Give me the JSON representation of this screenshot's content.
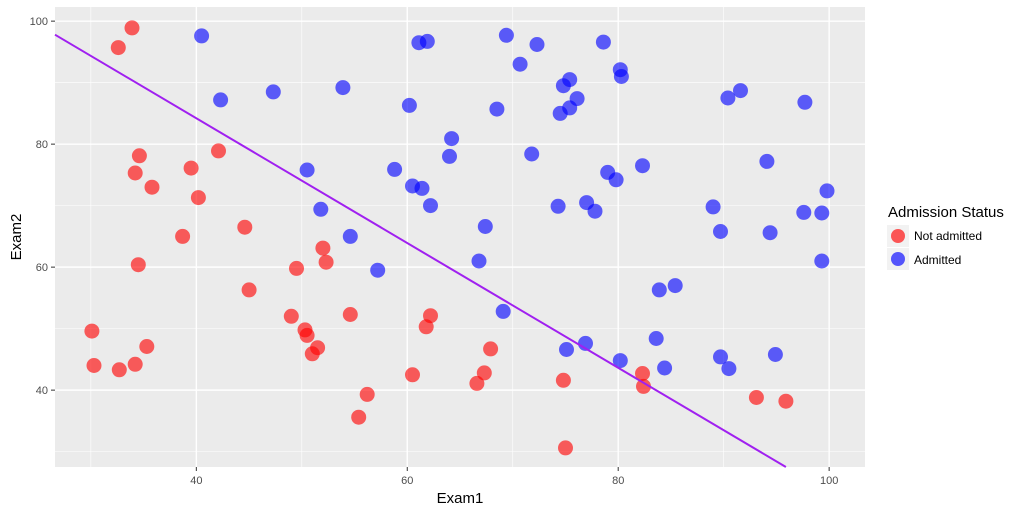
{
  "chart_data": {
    "type": "scatter",
    "title": "",
    "xlabel": "Exam1",
    "ylabel": "Exam2",
    "xlim": [
      26.6,
      103.4
    ],
    "ylim": [
      27.5,
      102.3
    ],
    "x_ticks": [
      40,
      60,
      80,
      100
    ],
    "y_ticks": [
      40,
      60,
      80,
      100
    ],
    "x_tick_labels": [
      "40",
      "60",
      "80",
      "100"
    ],
    "y_tick_labels": [
      "40",
      "60",
      "80",
      "100"
    ],
    "grid": true,
    "legend": {
      "title": "Admission Status",
      "position": "right",
      "entries": [
        "Not admitted",
        "Admitted"
      ]
    },
    "series": [
      {
        "name": "Not admitted",
        "color": "#ff0000",
        "points": [
          [
            33.9,
            98.9
          ],
          [
            32.6,
            95.7
          ],
          [
            34.6,
            78.1
          ],
          [
            34.2,
            75.3
          ],
          [
            35.8,
            73.0
          ],
          [
            39.5,
            76.1
          ],
          [
            42.1,
            78.9
          ],
          [
            40.2,
            71.3
          ],
          [
            38.7,
            65.0
          ],
          [
            44.6,
            66.5
          ],
          [
            34.5,
            60.4
          ],
          [
            45.0,
            56.3
          ],
          [
            49.5,
            59.8
          ],
          [
            52.0,
            63.1
          ],
          [
            52.3,
            60.8
          ],
          [
            30.1,
            49.6
          ],
          [
            30.3,
            44.0
          ],
          [
            32.7,
            43.3
          ],
          [
            34.2,
            44.2
          ],
          [
            35.3,
            47.1
          ],
          [
            49.0,
            52.0
          ],
          [
            50.3,
            49.8
          ],
          [
            50.5,
            48.9
          ],
          [
            51.0,
            45.9
          ],
          [
            51.5,
            46.9
          ],
          [
            54.6,
            52.3
          ],
          [
            56.2,
            39.3
          ],
          [
            55.4,
            35.6
          ],
          [
            60.5,
            42.5
          ],
          [
            61.8,
            50.3
          ],
          [
            62.2,
            52.1
          ],
          [
            66.6,
            41.1
          ],
          [
            67.3,
            42.8
          ],
          [
            67.9,
            46.7
          ],
          [
            74.8,
            41.6
          ],
          [
            75.0,
            30.6
          ],
          [
            82.3,
            42.7
          ],
          [
            82.4,
            40.6
          ],
          [
            93.1,
            38.8
          ],
          [
            95.9,
            38.2
          ]
        ]
      },
      {
        "name": "Admitted",
        "color": "#0000ff",
        "points": [
          [
            40.5,
            97.6
          ],
          [
            42.3,
            87.2
          ],
          [
            47.3,
            88.5
          ],
          [
            53.9,
            89.2
          ],
          [
            61.1,
            96.5
          ],
          [
            61.9,
            96.7
          ],
          [
            60.2,
            86.3
          ],
          [
            64.2,
            80.9
          ],
          [
            64.0,
            78.0
          ],
          [
            69.4,
            97.7
          ],
          [
            72.3,
            96.2
          ],
          [
            70.7,
            93.0
          ],
          [
            68.5,
            85.7
          ],
          [
            71.8,
            78.4
          ],
          [
            74.5,
            85.0
          ],
          [
            74.8,
            89.5
          ],
          [
            75.4,
            90.5
          ],
          [
            75.4,
            85.9
          ],
          [
            76.1,
            87.4
          ],
          [
            78.6,
            96.6
          ],
          [
            80.2,
            92.1
          ],
          [
            80.3,
            91.0
          ],
          [
            79.0,
            75.4
          ],
          [
            79.8,
            74.2
          ],
          [
            77.0,
            70.5
          ],
          [
            77.8,
            69.1
          ],
          [
            74.3,
            69.9
          ],
          [
            82.3,
            76.5
          ],
          [
            50.5,
            75.8
          ],
          [
            51.8,
            69.4
          ],
          [
            58.8,
            75.9
          ],
          [
            60.5,
            73.2
          ],
          [
            61.4,
            72.8
          ],
          [
            62.2,
            70.0
          ],
          [
            54.6,
            65.0
          ],
          [
            57.2,
            59.5
          ],
          [
            67.4,
            66.6
          ],
          [
            66.8,
            61.0
          ],
          [
            69.1,
            52.8
          ],
          [
            75.1,
            46.6
          ],
          [
            76.9,
            47.6
          ],
          [
            80.2,
            44.8
          ],
          [
            83.6,
            48.4
          ],
          [
            83.9,
            56.3
          ],
          [
            85.4,
            57.0
          ],
          [
            84.4,
            43.6
          ],
          [
            89.7,
            45.4
          ],
          [
            90.5,
            43.5
          ],
          [
            94.9,
            45.8
          ],
          [
            89.0,
            69.8
          ],
          [
            89.7,
            65.8
          ],
          [
            94.4,
            65.6
          ],
          [
            94.1,
            77.2
          ],
          [
            90.4,
            87.5
          ],
          [
            91.6,
            88.7
          ],
          [
            97.7,
            86.8
          ],
          [
            97.6,
            68.9
          ],
          [
            99.3,
            68.8
          ],
          [
            99.8,
            72.4
          ],
          [
            99.3,
            61.0
          ]
        ]
      }
    ],
    "decision_boundary": {
      "color": "#a020f0",
      "points": [
        [
          26.6,
          97.8
        ],
        [
          95.9,
          27.5
        ]
      ]
    },
    "colors": {
      "panel_background": "#ebebeb",
      "grid": "#ffffff",
      "point_not_admitted": "#ff0000",
      "point_admitted": "#0000ff",
      "boundary_line": "#a020f0"
    }
  }
}
